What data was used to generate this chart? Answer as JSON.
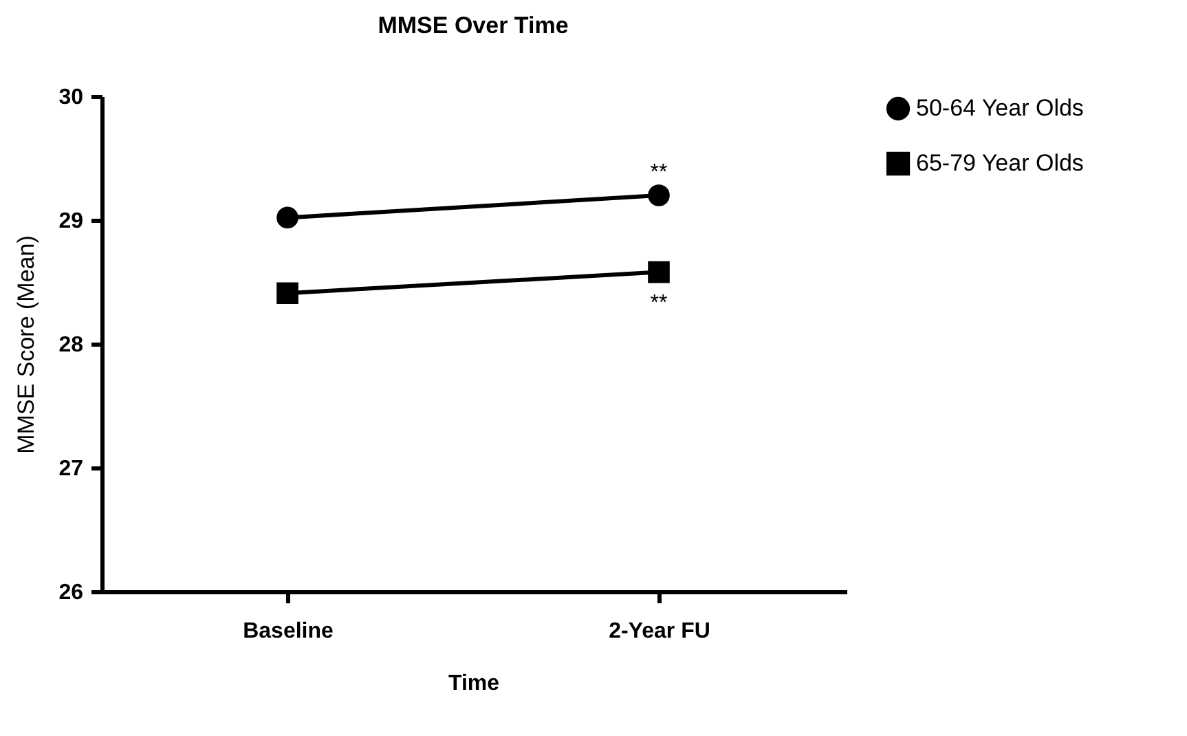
{
  "chart_data": {
    "type": "line",
    "title": "MMSE Over Time",
    "xlabel": "Time",
    "ylabel": "MMSE Score (Mean)",
    "categories": [
      "Baseline",
      "2-Year FU"
    ],
    "series": [
      {
        "name": "50-64 Year Olds",
        "color": "#000000",
        "marker": "circle",
        "values": [
          29.02,
          29.2
        ]
      },
      {
        "name": "65-79 Year Olds",
        "color": "#000000",
        "marker": "square",
        "values": [
          28.41,
          28.58
        ]
      }
    ],
    "ylim": [
      26,
      30
    ],
    "yticks": [
      26,
      27,
      28,
      29,
      30
    ],
    "grid": false,
    "legend": "right",
    "annotations": [
      {
        "text": "**",
        "x": "2-Year FU",
        "y": 29.2
      },
      {
        "text": "**",
        "x": "2-Year FU",
        "y": 28.58
      }
    ]
  }
}
